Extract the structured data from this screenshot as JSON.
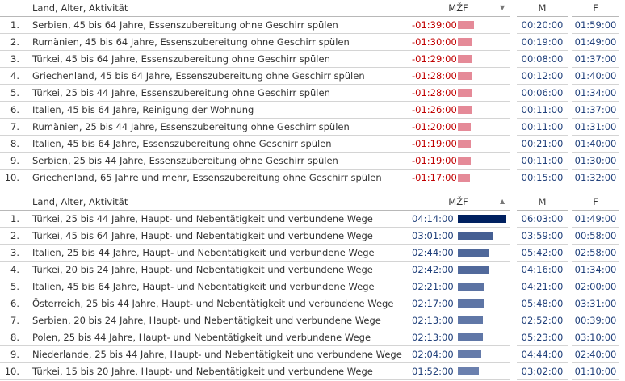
{
  "tables": [
    {
      "header": {
        "label": "Land, Alter, Aktivität",
        "diff": "MŽF",
        "m": "M",
        "f": "F"
      },
      "rows": [
        [
          "1.",
          "Serbien, 45 bis 64 Jahre, Essenszubereitung ohne Geschirr spülen",
          "-01:39:00",
          "00:20:00",
          "01:59:00"
        ],
        [
          "2.",
          "Rumänien, 45 bis 64 Jahre, Essenszubereitung ohne Geschirr spülen",
          "-01:30:00",
          "00:19:00",
          "01:49:00"
        ],
        [
          "3.",
          "Türkei, 45 bis 64 Jahre, Essenszubereitung ohne Geschirr spülen",
          "-01:29:00",
          "00:08:00",
          "01:37:00"
        ],
        [
          "4.",
          "Griechenland, 45 bis 64 Jahre, Essenszubereitung ohne Geschirr spülen",
          "-01:28:00",
          "00:12:00",
          "01:40:00"
        ],
        [
          "5.",
          "Türkei, 25 bis 44 Jahre, Essenszubereitung ohne Geschirr spülen",
          "-01:28:00",
          "00:06:00",
          "01:34:00"
        ],
        [
          "6.",
          "Italien, 45 bis 64 Jahre, Reinigung der Wohnung",
          "-01:26:00",
          "00:11:00",
          "01:37:00"
        ],
        [
          "7.",
          "Rumänien, 25 bis 44 Jahre, Essenszubereitung ohne Geschirr spülen",
          "-01:20:00",
          "00:11:00",
          "01:31:00"
        ],
        [
          "8.",
          "Italien, 45 bis 64 Jahre, Essenszubereitung ohne Geschirr spülen",
          "-01:19:00",
          "00:21:00",
          "01:40:00"
        ],
        [
          "9.",
          "Serbien, 25 bis 44 Jahre, Essenszubereitung ohne Geschirr spülen",
          "-01:19:00",
          "00:11:00",
          "01:30:00"
        ],
        [
          "10.",
          "Griechenland, 65 Jahre und mehr, Essenszubereitung ohne Geschirr spülen",
          "-01:17:00",
          "00:15:00",
          "01:32:00"
        ]
      ]
    },
    {
      "header": {
        "label": "Land, Alter, Aktivität",
        "diff": "MŽF",
        "m": "M",
        "f": "F"
      },
      "rows": [
        [
          "1.",
          "Türkei, 25 bis 44 Jahre, Haupt- und Nebentätigkeit und verbundene Wege",
          "04:14:00",
          "06:03:00",
          "01:49:00"
        ],
        [
          "2.",
          "Türkei, 45 bis 64 Jahre, Haupt- und Nebentätigkeit und verbundene Wege",
          "03:01:00",
          "03:59:00",
          "00:58:00"
        ],
        [
          "3.",
          "Italien, 25 bis 44 Jahre, Haupt- und Nebentätigkeit und verbundene Wege",
          "02:44:00",
          "05:42:00",
          "02:58:00"
        ],
        [
          "4.",
          "Türkei, 20 bis 24 Jahre, Haupt- und Nebentätigkeit und verbundene Wege",
          "02:42:00",
          "04:16:00",
          "01:34:00"
        ],
        [
          "5.",
          "Italien, 45 bis 64 Jahre, Haupt- und Nebentätigkeit und verbundene Wege",
          "02:21:00",
          "04:21:00",
          "02:00:00"
        ],
        [
          "6.",
          "Österreich, 25 bis 44 Jahre, Haupt- und Nebentätigkeit und verbundene Wege",
          "02:17:00",
          "05:48:00",
          "03:31:00"
        ],
        [
          "7.",
          "Serbien, 20 bis 24 Jahre, Haupt- und Nebentätigkeit und verbundene Wege",
          "02:13:00",
          "02:52:00",
          "00:39:00"
        ],
        [
          "8.",
          "Polen, 25 bis 44 Jahre, Haupt- und Nebentätigkeit und verbundene Wege",
          "02:13:00",
          "05:23:00",
          "03:10:00"
        ],
        [
          "9.",
          "Niederlande, 25 bis 44 Jahre, Haupt- und Nebentätigkeit und verbundene Wege",
          "02:04:00",
          "04:44:00",
          "02:40:00"
        ],
        [
          "10.",
          "Türkei, 15 bis 20 Jahre, Haupt- und Nebentätigkeit und verbundene Wege",
          "01:52:00",
          "03:02:00",
          "01:10:00"
        ]
      ]
    }
  ]
}
